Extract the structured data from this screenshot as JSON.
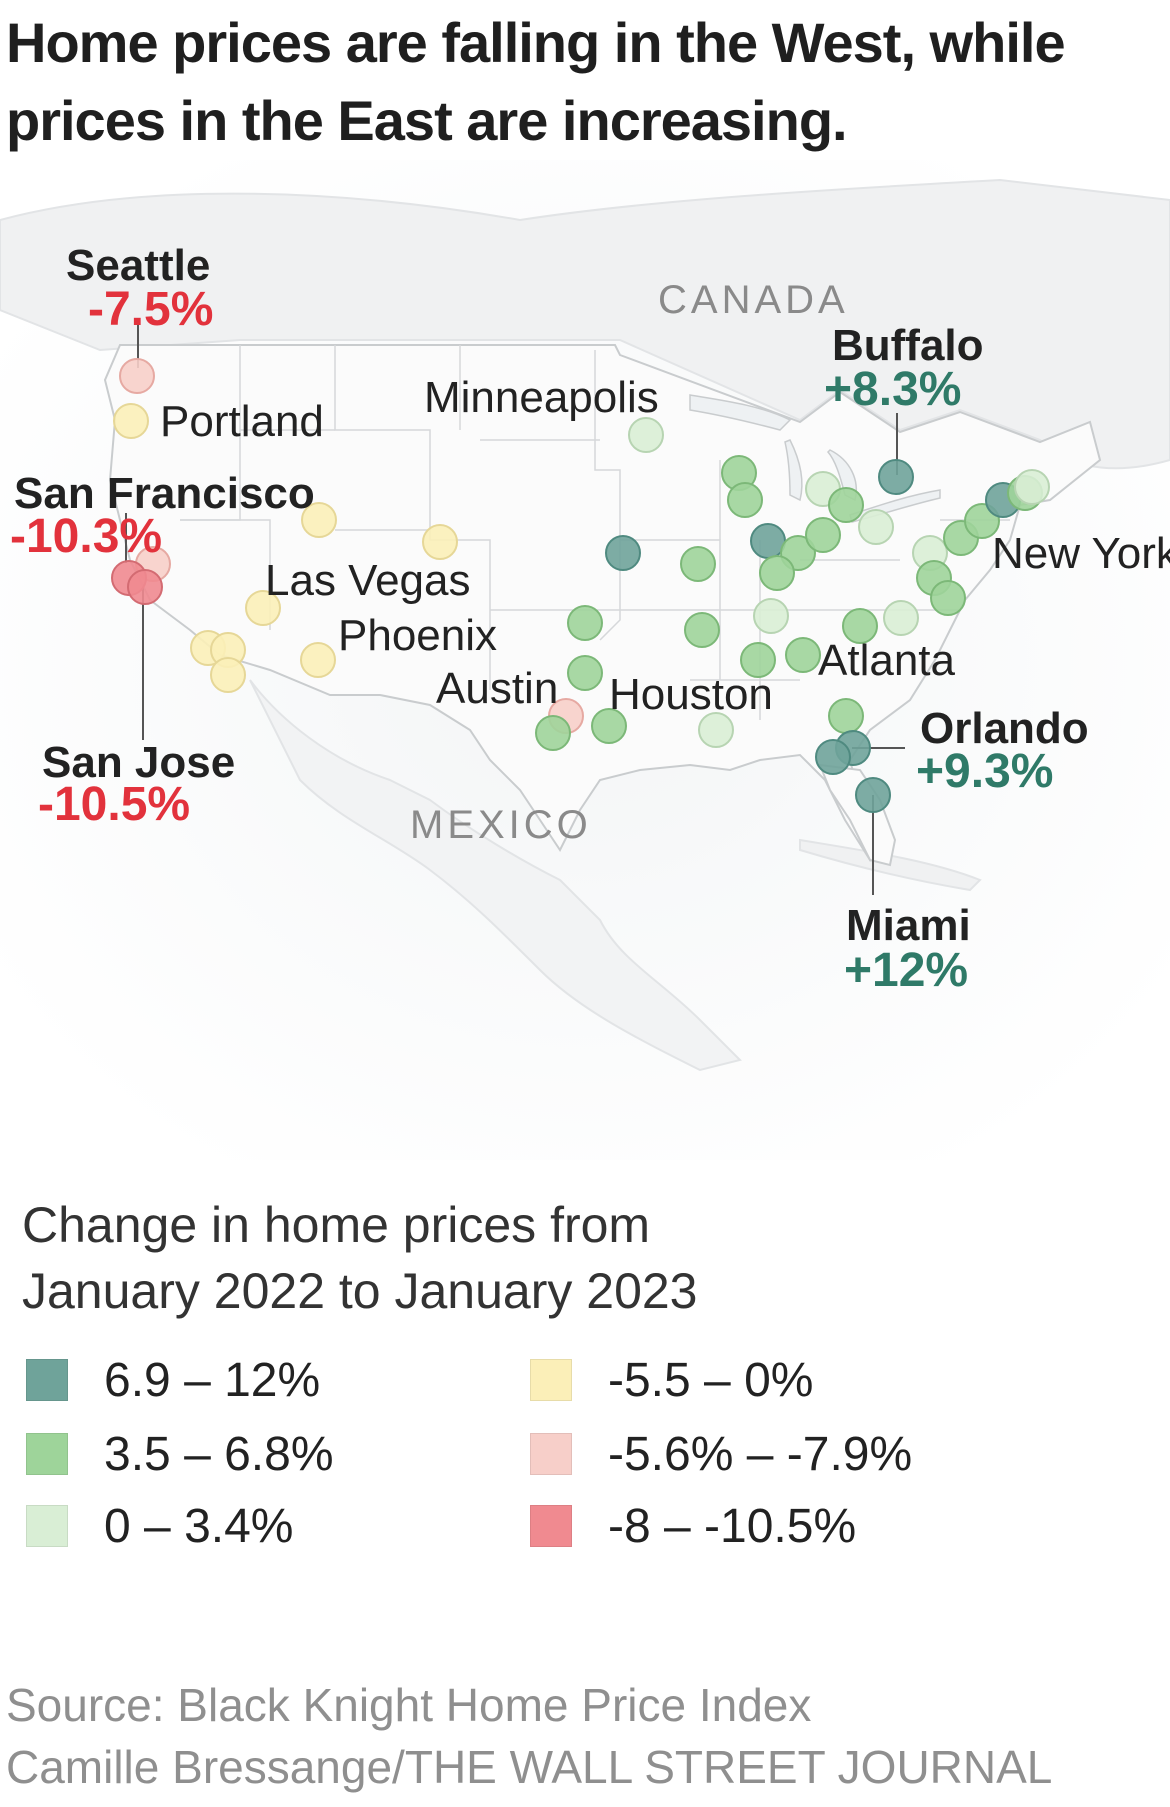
{
  "title": "Home prices are falling in the West, while prices in the East are increasing.",
  "map": {
    "countries": {
      "canada": "CANADA",
      "mexico": "MEXICO"
    },
    "labeled_cities": {
      "seattle": {
        "name": "Seattle",
        "change": "-7.5%"
      },
      "portland": {
        "name": "Portland"
      },
      "san_francisco": {
        "name": "San Francisco",
        "change": "-10.3%"
      },
      "las_vegas": {
        "name": "Las Vegas"
      },
      "phoenix": {
        "name": "Phoenix"
      },
      "san_jose": {
        "name": "San Jose",
        "change": "-10.5%"
      },
      "minneapolis": {
        "name": "Minneapolis"
      },
      "austin": {
        "name": "Austin"
      },
      "houston": {
        "name": "Houston"
      },
      "atlanta": {
        "name": "Atlanta"
      },
      "buffalo": {
        "name": "Buffalo",
        "change": "+8.3%"
      },
      "new_york": {
        "name": "New York"
      },
      "orlando": {
        "name": "Orlando",
        "change": "+9.3%"
      },
      "miami": {
        "name": "Miami",
        "change": "+12%"
      }
    }
  },
  "legend": {
    "title": "Change in home prices from January 2022 to January 2023",
    "items": [
      {
        "label": "6.9 – 12%",
        "color": "#6fa39a"
      },
      {
        "label": "3.5 – 6.8%",
        "color": "#9ed49a"
      },
      {
        "label": "0 – 3.4%",
        "color": "#d9eed5"
      },
      {
        "label": "-5.5 – 0%",
        "color": "#fbefb8"
      },
      {
        "label": "-5.6% – -7.9%",
        "color": "#f7cfc9"
      },
      {
        "label": "-8 – -10.5%",
        "color": "#f08a90"
      }
    ]
  },
  "source": {
    "line1": "Source: Black Knight Home Price Index",
    "line2": "Camille Bressange/THE WALL STREET JOURNAL"
  },
  "colors": {
    "dark_green": "#6fa39a",
    "green": "#9ed49a",
    "light_green": "#d9eed5",
    "yellow": "#fbefb8",
    "pink": "#f7cfc9",
    "red": "#f08a90",
    "negative_text": "#e2323c",
    "positive_text": "#2f7a68"
  }
}
